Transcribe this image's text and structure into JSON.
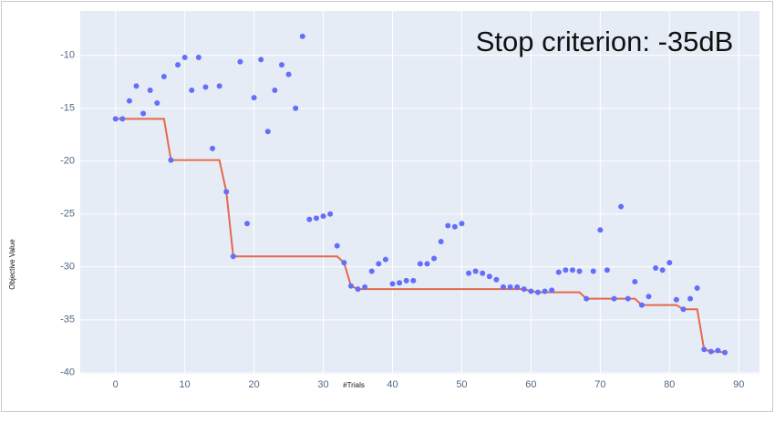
{
  "chart_data": {
    "type": "scatter",
    "annotation": "Stop criterion: -35dB",
    "xlabel": "#Trials",
    "ylabel": "Objective Value",
    "x": [
      0,
      1,
      2,
      3,
      4,
      5,
      6,
      7,
      8,
      9,
      10,
      11,
      12,
      13,
      14,
      15,
      16,
      17,
      18,
      19,
      20,
      21,
      22,
      23,
      24,
      25,
      26,
      27,
      28,
      29,
      30,
      31,
      32,
      33,
      34,
      35,
      36,
      37,
      38,
      39,
      40,
      41,
      42,
      43,
      44,
      45,
      46,
      47,
      48,
      49,
      50,
      51,
      52,
      53,
      54,
      55,
      56,
      57,
      58,
      59,
      60,
      61,
      62,
      63,
      64,
      65,
      66,
      67,
      68,
      69,
      70,
      71,
      72,
      73,
      74,
      75,
      76,
      77,
      78,
      79,
      80,
      81,
      82,
      83,
      84,
      85,
      86,
      87,
      88
    ],
    "series": [
      {
        "mode": "markers",
        "color": "#636efa",
        "values": [
          -16.0,
          -16.0,
          -14.3,
          -12.9,
          -15.5,
          -13.3,
          -14.5,
          -12.0,
          -19.9,
          -10.9,
          -10.2,
          -13.3,
          -10.2,
          -13.0,
          -18.8,
          -12.9,
          -22.9,
          -29.0,
          -10.6,
          -25.9,
          -14.0,
          -10.4,
          -17.2,
          -13.3,
          -10.9,
          -11.8,
          -15.0,
          -8.2,
          -25.5,
          -25.4,
          -25.2,
          -25.0,
          -28.0,
          -29.6,
          -31.8,
          -32.1,
          -31.9,
          -30.4,
          -29.7,
          -29.3,
          -31.6,
          -31.5,
          -31.3,
          -31.3,
          -29.7,
          -29.7,
          -29.2,
          -27.6,
          -26.1,
          -26.2,
          -25.9,
          -30.6,
          -30.4,
          -30.6,
          -30.9,
          -31.2,
          -31.9,
          -31.9,
          -31.9,
          -32.1,
          -32.3,
          -32.4,
          -32.3,
          -32.2,
          -30.5,
          -30.3,
          -30.3,
          -30.4,
          -33.0,
          -30.4,
          -26.5,
          -30.3,
          -33.0,
          -24.3,
          -33.0,
          -31.4,
          -33.6,
          -32.8,
          -30.1,
          -30.3,
          -29.6,
          -33.1,
          -34.0,
          -33.0,
          -32.0,
          -37.8,
          -38.0,
          -37.9,
          -38.1
        ]
      },
      {
        "mode": "lines",
        "color": "#e5684a",
        "values": [
          -16.0,
          -16.0,
          -16.0,
          -16.0,
          -16.0,
          -16.0,
          -16.0,
          -16.0,
          -19.9,
          -19.9,
          -19.9,
          -19.9,
          -19.9,
          -19.9,
          -19.9,
          -19.9,
          -22.9,
          -29.0,
          -29.0,
          -29.0,
          -29.0,
          -29.0,
          -29.0,
          -29.0,
          -29.0,
          -29.0,
          -29.0,
          -29.0,
          -29.0,
          -29.0,
          -29.0,
          -29.0,
          -29.0,
          -29.6,
          -31.8,
          -32.1,
          -32.1,
          -32.1,
          -32.1,
          -32.1,
          -32.1,
          -32.1,
          -32.1,
          -32.1,
          -32.1,
          -32.1,
          -32.1,
          -32.1,
          -32.1,
          -32.1,
          -32.1,
          -32.1,
          -32.1,
          -32.1,
          -32.1,
          -32.1,
          -32.1,
          -32.1,
          -32.1,
          -32.1,
          -32.3,
          -32.4,
          -32.4,
          -32.4,
          -32.4,
          -32.4,
          -32.4,
          -32.4,
          -33.0,
          -33.0,
          -33.0,
          -33.0,
          -33.0,
          -33.0,
          -33.0,
          -33.0,
          -33.6,
          -33.6,
          -33.6,
          -33.6,
          -33.6,
          -33.6,
          -34.0,
          -34.0,
          -34.0,
          -37.8,
          -38.0,
          -38.0,
          -38.1
        ]
      }
    ],
    "xlim": [
      -5.1,
      93
    ],
    "ylim": [
      -40.1,
      -5.8
    ],
    "xticks": [
      0,
      10,
      20,
      30,
      40,
      50,
      60,
      70,
      80,
      90
    ],
    "yticks": [
      -10,
      -15,
      -20,
      -25,
      -30,
      -35,
      -40
    ],
    "grid": true
  }
}
